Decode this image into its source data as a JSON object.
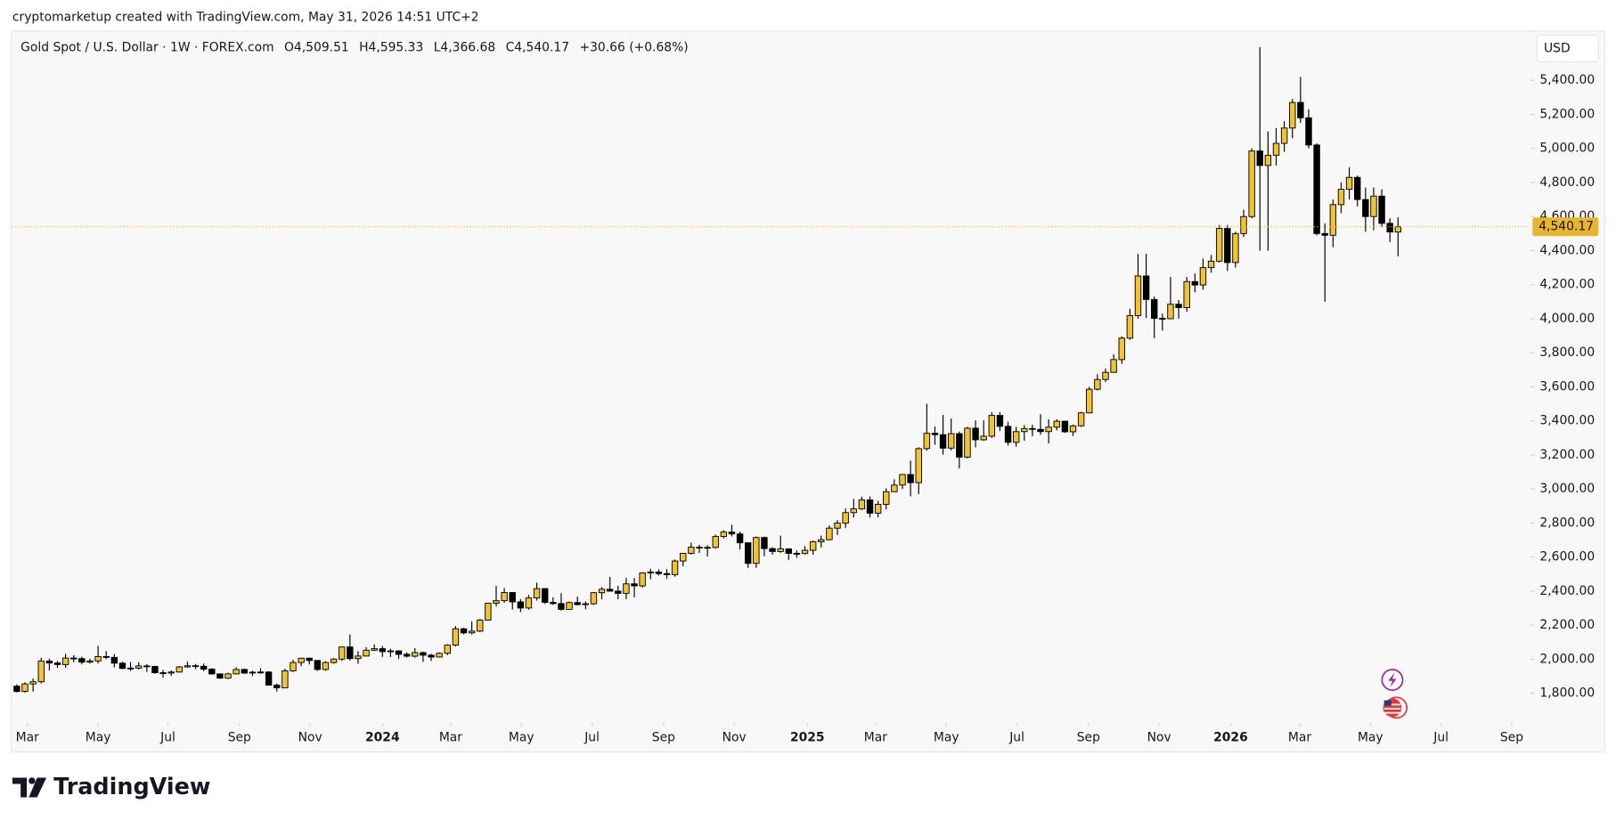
{
  "caption": "cryptomarketup created with TradingView.com, May 31, 2026 14:51 UTC+2",
  "brand": "TradingView",
  "chart_data": {
    "type": "candlestick",
    "title": "Gold Spot / U.S. Dollar · 1W · FOREX.com",
    "ohlc_labels": [
      "O4,509.51",
      "H4,595.33",
      "L4,366.68",
      "C4,540.17"
    ],
    "change_label": "+30.66 (+0.68%)",
    "currency": "USD",
    "up_color": "#f2c232",
    "down_color": "#000000",
    "last_price": {
      "value": 4540.17,
      "label": "4,540.17"
    },
    "last_price_color": "#e8b52c",
    "grid": false,
    "ylim": [
      1637,
      5690
    ],
    "yticks": [
      {
        "value": 1800,
        "label": "1,800.00"
      },
      {
        "value": 2000,
        "label": "2,000.00"
      },
      {
        "value": 2200,
        "label": "2,200.00"
      },
      {
        "value": 2400,
        "label": "2,400.00"
      },
      {
        "value": 2600,
        "label": "2,600.00"
      },
      {
        "value": 2800,
        "label": "2,800.00"
      },
      {
        "value": 3000,
        "label": "3,000.00"
      },
      {
        "value": 3200,
        "label": "3,200.00"
      },
      {
        "value": 3400,
        "label": "3,400.00"
      },
      {
        "value": 3600,
        "label": "3,600.00"
      },
      {
        "value": 3800,
        "label": "3,800.00"
      },
      {
        "value": 4000,
        "label": "4,000.00"
      },
      {
        "value": 4200,
        "label": "4,200.00"
      },
      {
        "value": 4400,
        "label": "4,400.00"
      },
      {
        "value": 4600,
        "label": "4,600.00"
      },
      {
        "value": 4800,
        "label": "4,800.00"
      },
      {
        "value": 5000,
        "label": "5,000.00"
      },
      {
        "value": 5200,
        "label": "5,200.00"
      },
      {
        "value": 5400,
        "label": "5,400.00"
      }
    ],
    "xlim": [
      -0.55,
      186.3
    ],
    "xticks": [
      {
        "value": 1.3,
        "label": "Mar"
      },
      {
        "value": 10,
        "label": "May"
      },
      {
        "value": 18.6,
        "label": "Jul"
      },
      {
        "value": 27.4,
        "label": "Sep"
      },
      {
        "value": 36.1,
        "label": "Nov"
      },
      {
        "value": 45,
        "label": "2024"
      },
      {
        "value": 53.4,
        "label": "Mar"
      },
      {
        "value": 62.1,
        "label": "May"
      },
      {
        "value": 70.8,
        "label": "Jul"
      },
      {
        "value": 79.6,
        "label": "Sep"
      },
      {
        "value": 88.3,
        "label": "Nov"
      },
      {
        "value": 97.3,
        "label": "2025"
      },
      {
        "value": 105.7,
        "label": "Mar"
      },
      {
        "value": 114.4,
        "label": "May"
      },
      {
        "value": 123.1,
        "label": "Jul"
      },
      {
        "value": 131.9,
        "label": "Sep"
      },
      {
        "value": 140.6,
        "label": "Nov"
      },
      {
        "value": 149.4,
        "label": "2026"
      },
      {
        "value": 157.9,
        "label": "Mar"
      },
      {
        "value": 166.6,
        "label": "May"
      },
      {
        "value": 175.3,
        "label": "Jul"
      },
      {
        "value": 184,
        "label": "Sep"
      }
    ],
    "open": [
      1842,
      1811,
      1855,
      1868,
      1989,
      1978,
      1969,
      2007,
      2004,
      1983,
      1990,
      2016,
      2011,
      1977,
      1946,
      1948,
      1961,
      1958,
      1921,
      1919,
      1925,
      1955,
      1962,
      1959,
      1942,
      1914,
      1889,
      1914,
      1940,
      1919,
      1924,
      1925,
      1848,
      1832,
      1932,
      1981,
      2006,
      1993,
      1940,
      1981,
      2001,
      2072,
      2004,
      2019,
      2053,
      2062,
      2045,
      2049,
      2029,
      2018,
      2039,
      2024,
      2013,
      2035,
      2083,
      2179,
      2155,
      2165,
      2230,
      2329,
      2344,
      2392,
      2337,
      2301,
      2360,
      2415,
      2334,
      2327,
      2293,
      2333,
      2321,
      2326,
      2391,
      2411,
      2400,
      2387,
      2443,
      2431,
      2507,
      2512,
      2503,
      2497,
      2577,
      2622,
      2658,
      2653,
      2657,
      2721,
      2747,
      2736,
      2684,
      2563,
      2715,
      2650,
      2633,
      2648,
      2622,
      2621,
      2640,
      2690,
      2702,
      2770,
      2800,
      2861,
      2883,
      2936,
      2858,
      2910,
      2984,
      3023,
      3085,
      3037,
      3237,
      3327,
      3319,
      3240,
      3325,
      3187,
      3357,
      3289,
      3310,
      3432,
      3368,
      3274,
      3337,
      3355,
      3350,
      3337,
      3363,
      3398,
      3336,
      3371,
      3447,
      3586,
      3643,
      3685,
      3760,
      3886,
      4018,
      4251,
      4113,
      4002,
      4000,
      4085,
      4065,
      4218,
      4198,
      4300,
      4338,
      4530,
      4330,
      4500,
      4600,
      4985,
      4900,
      4960,
      5030,
      5120,
      5270,
      5180,
      5020,
      4500,
      4490,
      4670,
      4760,
      4830,
      4700,
      4600,
      4720,
      4560,
      4509.51
    ],
    "high": [
      1852,
      1865,
      1887,
      2009,
      2004,
      1990,
      2032,
      2024,
      2015,
      2003,
      2079,
      2048,
      2030,
      1985,
      1984,
      1982,
      1971,
      1962,
      1938,
      1935,
      1960,
      1987,
      1972,
      1975,
      1947,
      1917,
      1921,
      1953,
      1945,
      1933,
      1947,
      1930,
      1858,
      1945,
      1997,
      2009,
      2010,
      1995,
      1988,
      2007,
      2075,
      2146,
      2048,
      2071,
      2088,
      2078,
      2062,
      2053,
      2040,
      2065,
      2045,
      2032,
      2041,
      2088,
      2195,
      2185,
      2222,
      2236,
      2331,
      2431,
      2418,
      2392,
      2354,
      2378,
      2450,
      2418,
      2364,
      2388,
      2339,
      2368,
      2340,
      2395,
      2424,
      2484,
      2432,
      2478,
      2477,
      2510,
      2531,
      2528,
      2529,
      2586,
      2625,
      2685,
      2672,
      2670,
      2732,
      2758,
      2790,
      2750,
      2685,
      2721,
      2721,
      2657,
      2726,
      2652,
      2639,
      2665,
      2697,
      2726,
      2786,
      2817,
      2886,
      2942,
      2955,
      2956,
      2930,
      3004,
      3057,
      3086,
      3167,
      3245,
      3500,
      3367,
      3435,
      3414,
      3337,
      3365,
      3403,
      3403,
      3451,
      3452,
      3395,
      3365,
      3375,
      3377,
      3439,
      3409,
      3409,
      3400,
      3378,
      3453,
      3600,
      3674,
      3707,
      3791,
      3896,
      4059,
      4381,
      4381,
      4130,
      4030,
      4245,
      4110,
      4245,
      4265,
      4353,
      4375,
      4550,
      4550,
      4510,
      4640,
      5000,
      5595,
      5100,
      5120,
      5160,
      5290,
      5420,
      5230,
      5030,
      4560,
      4700,
      4800,
      4890,
      4840,
      4770,
      4770,
      4760,
      4590,
      4595.33
    ],
    "low": [
      1805,
      1804,
      1810,
      1858,
      1934,
      1950,
      1949,
      1982,
      1970,
      1975,
      1975,
      2000,
      1952,
      1942,
      1932,
      1940,
      1925,
      1915,
      1893,
      1902,
      1922,
      1950,
      1942,
      1930,
      1910,
      1885,
      1884,
      1912,
      1915,
      1901,
      1915,
      1846,
      1810,
      1830,
      1925,
      1959,
      1970,
      1932,
      1932,
      1974,
      1990,
      1992,
      1973,
      2016,
      2048,
      2014,
      2013,
      2002,
      2010,
      2010,
      1984,
      1990,
      2010,
      2024,
      2075,
      2146,
      2146,
      2160,
      2229,
      2310,
      2332,
      2292,
      2277,
      2291,
      2345,
      2325,
      2320,
      2286,
      2290,
      2316,
      2293,
      2319,
      2353,
      2398,
      2353,
      2353,
      2364,
      2420,
      2470,
      2491,
      2472,
      2485,
      2547,
      2615,
      2624,
      2603,
      2649,
      2709,
      2721,
      2644,
      2536,
      2537,
      2605,
      2614,
      2625,
      2583,
      2596,
      2615,
      2614,
      2657,
      2699,
      2730,
      2772,
      2832,
      2877,
      2832,
      2833,
      2880,
      2982,
      3000,
      2957,
      2970,
      3225,
      3260,
      3202,
      3227,
      3121,
      3180,
      3245,
      3283,
      3300,
      3340,
      3255,
      3248,
      3283,
      3310,
      3319,
      3268,
      3345,
      3330,
      3311,
      3365,
      3444,
      3579,
      3628,
      3684,
      3735,
      3876,
      4000,
      4004,
      3886,
      3930,
      3997,
      4000,
      4040,
      4155,
      4170,
      4270,
      4330,
      4280,
      4300,
      4480,
      4590,
      4400,
      4400,
      4900,
      4980,
      5060,
      5150,
      5000,
      4490,
      4100,
      4420,
      4620,
      4700,
      4660,
      4510,
      4520,
      4540,
      4450,
      4366.68
    ],
    "close": [
      1811,
      1855,
      1868,
      1989,
      1978,
      1969,
      2007,
      2004,
      1983,
      1990,
      2016,
      2011,
      1977,
      1946,
      1948,
      1961,
      1958,
      1921,
      1919,
      1925,
      1955,
      1962,
      1959,
      1942,
      1914,
      1889,
      1914,
      1940,
      1919,
      1924,
      1925,
      1848,
      1832,
      1932,
      1981,
      2006,
      1993,
      1940,
      1981,
      2001,
      2072,
      2004,
      2019,
      2053,
      2062,
      2045,
      2049,
      2029,
      2018,
      2039,
      2024,
      2013,
      2035,
      2083,
      2179,
      2155,
      2165,
      2230,
      2329,
      2344,
      2392,
      2337,
      2301,
      2360,
      2415,
      2334,
      2327,
      2293,
      2333,
      2321,
      2326,
      2391,
      2411,
      2400,
      2387,
      2443,
      2431,
      2507,
      2512,
      2503,
      2497,
      2577,
      2622,
      2658,
      2653,
      2657,
      2721,
      2747,
      2736,
      2684,
      2563,
      2715,
      2650,
      2633,
      2648,
      2622,
      2621,
      2640,
      2690,
      2702,
      2770,
      2800,
      2861,
      2883,
      2936,
      2858,
      2910,
      2984,
      3023,
      3085,
      3037,
      3237,
      3327,
      3319,
      3240,
      3325,
      3187,
      3357,
      3289,
      3310,
      3432,
      3368,
      3274,
      3337,
      3355,
      3350,
      3337,
      3363,
      3398,
      3336,
      3371,
      3447,
      3586,
      3643,
      3685,
      3760,
      3886,
      4018,
      4251,
      4113,
      4002,
      4000,
      4085,
      4065,
      4218,
      4198,
      4300,
      4338,
      4530,
      4330,
      4500,
      4600,
      4985,
      4900,
      4960,
      5030,
      5120,
      5270,
      5180,
      5020,
      4500,
      4490,
      4670,
      4760,
      4830,
      4700,
      4600,
      4720,
      4560,
      4509.51,
      4540.17
    ]
  }
}
